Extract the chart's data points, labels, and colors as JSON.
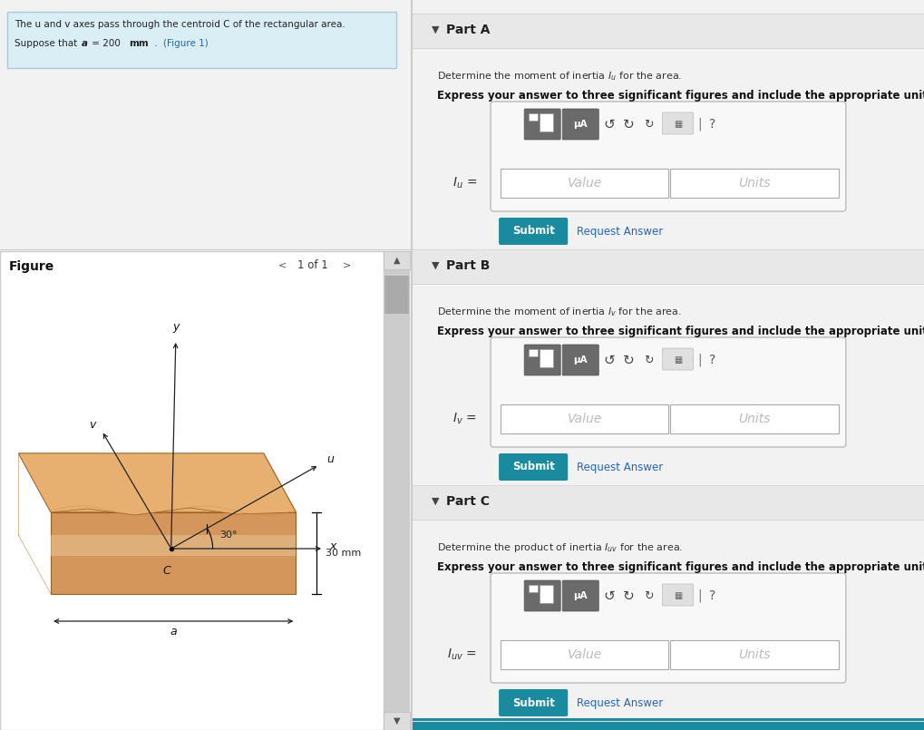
{
  "bg_color": "#f2f2f2",
  "left_panel_bg": "#f2f2f2",
  "header_bg": "#daeef5",
  "header_border": "#a8cdd8",
  "right_panel_bg": "#ffffff",
  "part_header_bg": "#e8e8e8",
  "part_header_border": "#cccccc",
  "input_box_bg": "#f8f8f8",
  "input_box_border": "#bbbbbb",
  "input_field_bg": "#ffffff",
  "input_field_border": "#aaaaaa",
  "toolbar_icon1_bg": "#777777",
  "toolbar_icon2_bg": "#888888",
  "submit_bg": "#1a8a9e",
  "submit_text": "#ffffff",
  "request_answer_color": "#2266bb",
  "figure_area_bg": "#ffffff",
  "figure_area_border": "#cccccc",
  "scrollbar_bg": "#cccccc",
  "scrollbar_thumb": "#aaaaaa",
  "box_front_color": "#d4965a",
  "box_top_color": "#e8b070",
  "box_right_color": "#c07840",
  "box_light_band": "#e8c090",
  "header_line1": "The u and v axes pass through the centroid C of the rectangular area.",
  "header_line2a": "Suppose that ",
  "header_line2b": "a",
  "header_line2c": " = 200 ",
  "header_line2d": "mm",
  "header_line2e": " . ",
  "header_line2f": "(Figure 1)",
  "figure_text": "Figure",
  "nav_text": "1 of 1",
  "angle_text": "30°",
  "dim_text": "30 mm",
  "a_text": "a"
}
